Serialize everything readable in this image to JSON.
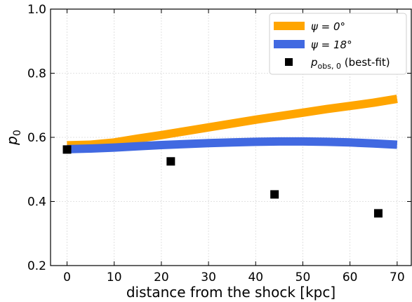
{
  "chart_data": {
    "type": "line",
    "xlabel": "distance from the shock [kpc]",
    "ylabel": "p",
    "ylabel_sub": "0",
    "xlim": [
      -3.5,
      73
    ],
    "ylim": [
      0.2,
      1.0
    ],
    "xticks": [
      0,
      10,
      20,
      30,
      40,
      50,
      60,
      70
    ],
    "xtick_labels": [
      "0",
      "10",
      "20",
      "30",
      "40",
      "50",
      "60",
      "70"
    ],
    "yticks": [
      0.2,
      0.4,
      0.6,
      0.8,
      1.0
    ],
    "ytick_labels": [
      "0.2",
      "0.4",
      "0.6",
      "0.8",
      "1.0"
    ],
    "grid": true,
    "legend_position": "top-right",
    "series": [
      {
        "name": "ψ = 0°",
        "color": "#FFA500",
        "x": [
          0,
          5,
          10,
          15,
          20,
          25,
          30,
          35,
          40,
          45,
          50,
          55,
          60,
          65,
          70
        ],
        "y": [
          0.575,
          0.577,
          0.584,
          0.596,
          0.607,
          0.619,
          0.631,
          0.643,
          0.655,
          0.666,
          0.677,
          0.688,
          0.698,
          0.708,
          0.72
        ]
      },
      {
        "name": "ψ = 18°",
        "color": "#4169E1",
        "x": [
          0,
          5,
          10,
          15,
          20,
          25,
          30,
          35,
          40,
          45,
          50,
          55,
          60,
          65,
          70
        ],
        "y": [
          0.563,
          0.565,
          0.568,
          0.572,
          0.576,
          0.579,
          0.582,
          0.584,
          0.586,
          0.587,
          0.587,
          0.586,
          0.584,
          0.581,
          0.577
        ]
      }
    ],
    "points": {
      "name": "p_obs,0 (best-fit)",
      "label_main": "p",
      "label_sub": "obs, 0",
      "label_rest": " (best-fit)",
      "color": "#000000",
      "x": [
        0,
        22,
        44,
        66
      ],
      "y": [
        0.562,
        0.525,
        0.422,
        0.363
      ]
    }
  }
}
